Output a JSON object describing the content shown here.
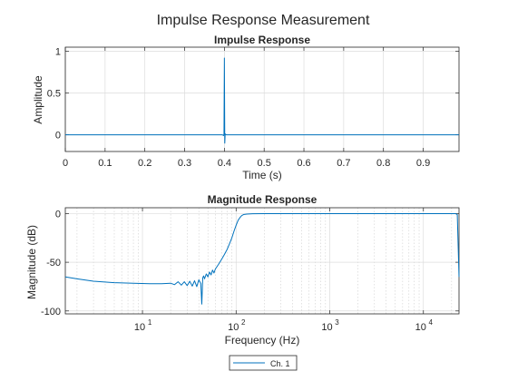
{
  "figure_title": "Impulse Response Measurement",
  "chart_data": [
    {
      "type": "line",
      "title": "Impulse Response",
      "xlabel": "Time (s)",
      "ylabel": "Amplitude",
      "xlim": [
        0,
        0.99
      ],
      "ylim": [
        -0.2,
        1.05
      ],
      "xticks": [
        0,
        0.1,
        0.2,
        0.3,
        0.4,
        0.5,
        0.6,
        0.7,
        0.8,
        0.9
      ],
      "xtick_labels": [
        "0",
        "0.1",
        "0.2",
        "0.3",
        "0.4",
        "0.5",
        "0.6",
        "0.7",
        "0.8",
        "0.9"
      ],
      "yticks": [
        0,
        0.5,
        1
      ],
      "ytick_labels": [
        "0",
        "0.5",
        "1"
      ],
      "grid": true,
      "series": [
        {
          "color": "#0072BD",
          "x": [
            0,
            0.395,
            0.398,
            0.399,
            0.4,
            0.401,
            0.402,
            0.405,
            0.99
          ],
          "y": [
            0,
            0,
            -0.01,
            0.01,
            0.92,
            -0.1,
            0.01,
            0,
            0
          ]
        }
      ]
    },
    {
      "type": "line",
      "title": "Magnitude Response",
      "xlabel": "Frequency (Hz)",
      "ylabel": "Magnitude (dB)",
      "xscale": "log",
      "xlim": [
        1.5,
        24000
      ],
      "ylim": [
        -103,
        6
      ],
      "xticks": [
        10,
        100,
        1000,
        10000
      ],
      "xtick_base": [
        "10",
        "10",
        "10",
        "10"
      ],
      "xtick_exp": [
        "1",
        "2",
        "3",
        "4"
      ],
      "yticks": [
        0,
        -50,
        -100
      ],
      "ytick_labels": [
        "0",
        "-50",
        "-100"
      ],
      "grid": true,
      "minor_grid": true,
      "legend_position": "bottom-center",
      "series": [
        {
          "name": "Ch. 1",
          "color": "#0072BD",
          "x": [
            1.5,
            2,
            3,
            5,
            8,
            12,
            16,
            20,
            22,
            24,
            26,
            28,
            30,
            32,
            34,
            36,
            38,
            40,
            42,
            43,
            44,
            45,
            46,
            48,
            50,
            52,
            54,
            56,
            58,
            60,
            65,
            70,
            75,
            80,
            85,
            90,
            95,
            100,
            105,
            110,
            115,
            120,
            130,
            150,
            200,
            300,
            500,
            1000,
            3000,
            10000,
            20000,
            22000,
            23000,
            24000
          ],
          "y": [
            -65,
            -67,
            -69.5,
            -71,
            -71.5,
            -72,
            -72,
            -71.5,
            -73,
            -70,
            -73.5,
            -70,
            -74,
            -69.5,
            -74.5,
            -69,
            -75,
            -68,
            -72,
            -93,
            -66,
            -64,
            -67,
            -62,
            -65,
            -60,
            -63,
            -58,
            -61,
            -57,
            -52,
            -47,
            -42,
            -37,
            -31,
            -25,
            -18,
            -12,
            -7,
            -4,
            -2,
            -1,
            -0.5,
            -0.2,
            0,
            0,
            0,
            0,
            0,
            0,
            0,
            0,
            -1,
            -65
          ]
        }
      ]
    }
  ]
}
